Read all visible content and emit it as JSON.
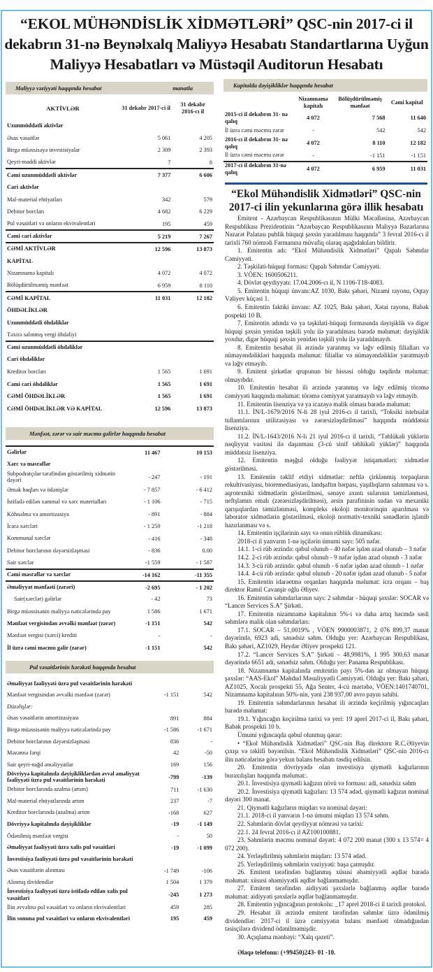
{
  "title": "“EKOL  MÜHƏNDİSLİK  XİDMƏTLƏRİ” QSC-nin 2017-ci il dekabrın 31-nə Beynəlxalq Maliyyə Hesabatı Standartlarına Uyğun Maliyyə Hesabatları və Müstəqil Auditorun Hesabatı",
  "colors": {
    "frame": "#6ec1e4",
    "bar": "#d8d5c6",
    "rule": "#1f4e8c"
  },
  "balance": {
    "heading": "Maliyyə vəziyyəti haqqında hesabat",
    "unit": "manatla",
    "col0": "AKTİVLƏR",
    "col1": "31 dekabr 2017-ci il",
    "col2": "31 dekabr 2016-cı il",
    "rows": [
      {
        "label": "Uzunmüddətli aktivlər",
        "v1": "",
        "v2": "",
        "style": "b"
      },
      {
        "label": "Əsas vəsaitlər",
        "v1": "5 061",
        "v2": "4 205"
      },
      {
        "label": "Birgə müəssisəyə investisiyalar",
        "v1": "2 309",
        "v2": "2 393"
      },
      {
        "label": "Qeyri-maddi aktivlər",
        "v1": "7",
        "v2": "8"
      },
      {
        "label": "Cəmi uzunmüddətli aktivlər",
        "v1": "7 377",
        "v2": "6 606",
        "style": "b",
        "line": true
      },
      {
        "label": "Cari aktivlər",
        "v1": "",
        "v2": "",
        "style": "b"
      },
      {
        "label": "Mal-material ehtiyatları",
        "v1": "342",
        "v2": "579"
      },
      {
        "label": "Debitor borcları",
        "v1": "4 682",
        "v2": "6 229"
      },
      {
        "label": "Pul vəsaitləri və onların ekvivalentləri",
        "v1": "195",
        "v2": "459"
      },
      {
        "label": "Cəmi cari aktivlər",
        "v1": "5 219",
        "v2": "7 267",
        "style": "b",
        "line": true
      },
      {
        "label": "CƏMİ AKTİVLƏR",
        "v1": "12 596",
        "v2": "13 873",
        "style": "b",
        "line": true
      },
      {
        "label": "KAPİTAL",
        "v1": "",
        "v2": "",
        "style": "b"
      },
      {
        "label": "Nizamnamə kapitalı",
        "v1": "4 072",
        "v2": "4 072"
      },
      {
        "label": "Bölüşdürülməmiş mənfəət",
        "v1": "6 959",
        "v2": "8 110"
      },
      {
        "label": "CƏMİ KAPİTAL",
        "v1": "11 031",
        "v2": "12 182",
        "style": "b",
        "line": true
      },
      {
        "label": "ÖHDƏLİKLƏR",
        "v1": "",
        "v2": "",
        "style": "b"
      },
      {
        "label": "Uzunmüddətli öhdəliklər",
        "v1": "",
        "v2": "",
        "style": "b"
      },
      {
        "label": "Təxirə salınmış vergi öhdəliyi",
        "v1": "",
        "v2": ""
      },
      {
        "label": "Cəmi uzunmüddətli öhdəliklər",
        "v1": "",
        "v2": "",
        "style": "b",
        "line": true
      },
      {
        "label": "Cari öhdəliklər",
        "v1": "",
        "v2": "",
        "style": "b"
      },
      {
        "label": "Kreditor borcları",
        "v1": "1 565",
        "v2": "1 691"
      },
      {
        "label": "Cəmi cari öhdəliklər",
        "v1": "1 565",
        "v2": "1 691",
        "style": "b"
      },
      {
        "label": "CƏMİ ÖHDƏLİKLƏR",
        "v1": "1 565",
        "v2": "1 691",
        "style": "b"
      },
      {
        "label": "CƏMİ ÖHDƏLİKLƏR VƏ KAPİTAL",
        "v1": "12 596",
        "v2": "13 873",
        "style": "b"
      }
    ]
  },
  "income": {
    "heading": "Mənfəət, zərər və sair məcmu gəlirlər haqqında hesabat",
    "rows": [
      {
        "label": "Gəlirlər",
        "v1": "11 467",
        "v2": "10 153",
        "style": "b",
        "line": true
      },
      {
        "label": "Xərc və məsrəflər",
        "v1": "",
        "v2": "",
        "style": "b"
      },
      {
        "label": "Subpodratçılar tərəfindən göstərilmiş xidmətin dəyəri",
        "v1": "- 247",
        "v2": "- 191"
      },
      {
        "label": "Əmək haqları və ödənişlər",
        "v1": "- 7 857",
        "v2": "- 6 412"
      },
      {
        "label": "İstifadə edilən xammal və xərc materialları",
        "v1": "- 1 106",
        "v2": "- 715"
      },
      {
        "label": "Köhnəlmə və amortizasiya",
        "v1": "- 891",
        "v2": "- 884"
      },
      {
        "label": "İcarə xərcləri",
        "v1": "- 1 250",
        "v2": "-1 218"
      },
      {
        "label": "Kommunal xərclər",
        "v1": "- 416",
        "v2": "- 348"
      },
      {
        "label": "Debitor borclarının dəyərsizləşməsi",
        "v1": "- 836",
        "v2": "0.00"
      },
      {
        "label": "Sair xərclər",
        "v1": "-1 559",
        "v2": "- 1 587"
      },
      {
        "label": "Cəmi məsrəflər və xərclər",
        "v1": "-14 162",
        "v2": "-11 355",
        "style": "b",
        "line": true
      },
      {
        "label": "Əməliyyat mənfəəti (zərəri)",
        "v1": "-2 695",
        "v2": "-    1 202",
        "style": "b",
        "line": true
      },
      {
        "label": "Sair(xərclər) gəlirlər",
        "v1": "- 42",
        "v2": "73",
        "indent": true
      },
      {
        "label": "Birgə müəssisənin maliyyə nəticələrində pay",
        "v1": "1 586",
        "v2": "1 671"
      },
      {
        "label": "Mənfəət vergisindən əvvəlki mənfəət (zərər)",
        "v1": "-1 151",
        "v2": "542",
        "style": "b"
      },
      {
        "label": "Mənfəət vergisi (xərci) krediti",
        "v1": "-",
        "v2": "-"
      },
      {
        "label": "İl üzrə cəmi məcmu gəlir (zərər)",
        "v1": "-1 151",
        "v2": "542",
        "style": "b"
      }
    ]
  },
  "cash": {
    "heading": "Pul vəsaitlərinin hərəkəti haqqında hesabat",
    "rows": [
      {
        "label": "Əməliyyat fəaliyyəti üzrə pul vəsaitlərinin hərəkəti",
        "v1": "",
        "v2": "",
        "style": "b"
      },
      {
        "label": "Mənfəət vergisindən əvvəlki mənfəət (zərər)",
        "v1": "-1 151",
        "v2": "542"
      },
      {
        "label": "Düzəlişlər:",
        "v1": "",
        "v2": "",
        "style": "i"
      },
      {
        "label": "Əsas vəsaitlərin amortizasiyası",
        "v1": "891",
        "v2": "884"
      },
      {
        "label": "Birgə müəssisənin maliyyə nəticələrində pay",
        "v1": "-1 586",
        "v2": "-1 671"
      },
      {
        "label": "Debitor borclarının dəyərsizləşməsi",
        "v1": "836",
        "v2": "-"
      },
      {
        "label": "Məzənnə fərqi",
        "v1": "42",
        "v2": "-50"
      },
      {
        "label": "Sair qeyri-nağd əməliyyatlar",
        "v1": "169",
        "v2": "156"
      },
      {
        "label": "Dövriyyə kapitalında dəyişikliklərdən əvvəl əməliyyat fəaliyyəti üzrə pul vəsaitlərinin hərəkəti",
        "v1": "-799",
        "v2": "-139",
        "style": "b"
      },
      {
        "label": "Debitor borclarında azalma (artım)",
        "v1": "711",
        "v2": "-1 630"
      },
      {
        "label": "Mal-material ehtiyatlarında artım",
        "v1": "237",
        "v2": "-7"
      },
      {
        "label": "Kreditor borclarında (azalma) artım",
        "v1": "-168",
        "v2": "627"
      },
      {
        "label": "Dövriyyə kapitalında dəyişikliklər",
        "v1": "-19",
        "v2": "-1 149",
        "style": "b"
      },
      {
        "label": "Ödənilmiş mənfəət vergisi",
        "v1": "-",
        "v2": "50"
      },
      {
        "label": "Əməliyyat fəaliyyəti üzrə xalis pul vəsaitləri",
        "v1": "-19",
        "v2": "-1 099",
        "style": "b"
      },
      {
        "label": "İnvestisiya fəaliyyəti üzrə pul vəsaitlərinin hərəkəti",
        "v1": "",
        "v2": "",
        "style": "b"
      },
      {
        "label": "Əsas vəsaitlərin alınması",
        "v1": "-1 749",
        "v2": "-106"
      },
      {
        "label": "Alınmış dividendlər",
        "v1": "1 504",
        "v2": "1 379"
      },
      {
        "label": "İnvestisiya fəaliyyəti üzrə istifadə edilən xalis pul vəsaitləri",
        "v1": "-245",
        "v2": "1 273",
        "style": "b"
      },
      {
        "label": "İlin əvvəlinə pul vəsaitləri və onların ekvivalentləri",
        "v1": "459",
        "v2": "285"
      },
      {
        "label": "İlin sonuna pul vəsaitləri və onların ekvivalentləri",
        "v1": "195",
        "v2": "459",
        "style": "b"
      }
    ]
  },
  "equity": {
    "heading": "Kapitalda dəyişikliklər haqqında hesabat",
    "col1": "Nizamnamə kapitalı",
    "col2": "Bölüşdürülməmiş mənfəət",
    "col3": "Cəmi kapital",
    "rows": [
      {
        "label": "2015-ci  il  dekabrın 31- nə qalıq",
        "v1": "4 072",
        "v2": "7 568",
        "v3": "11 640",
        "style": "b"
      },
      {
        "label": "İl üzrə cəmi məcmu zərər",
        "v1": "-",
        "v2": "542",
        "v3": "542"
      },
      {
        "label": "2016-cı  il  dekabrın 31- nə qalıq",
        "v1": "4 072",
        "v2": "8 110",
        "v3": "12 182",
        "style": "b"
      },
      {
        "label": "İl üzrə cəmi məcmu zərər",
        "v1": "-",
        "v2": "-1 151",
        "v3": "-1 151"
      },
      {
        "label": "2017-ci  il dekabrın 31-nə qalıq",
        "v1": "4 072",
        "v2": "6 959",
        "v3": "11 031",
        "style": "b",
        "line": true
      }
    ]
  },
  "report": {
    "title": "“Ekol Mühəndislik Xidmətləri” QSC-nin 2017-ci ilin yekunlarına görə illik hesabatı",
    "paragraphs": [
      "Emitent - Azərbaycan Respublikasının Mülki Məcəlləsinə, Azərbaycan Respublikası Prezidentinin “Azərbaycan Respublikasının Maliyyə Bazarlarına Nəzarət Palatası publik hüquqi şəxsin yaradılması haqqında” 3 fevral 2016-cı il tarixli 760 nömrəli Fərmanına müvafiq olaraq aşağıdakıları bildirir.",
      "1. Emitentin adı: “Ekol Mühəndislik Xidmətləri” Qapalı Səhmdar Cəmiyyəti.",
      "2. Təşkilati-hüquqi forması: Qapalı Səhmdar Cəmiyyəti.",
      "3. VÖEN: 1600506211.",
      "4. Dövlət qeydiyyatı: 17.04.2006-cı il, N 1106-T18-4083.",
      "5. Emitentin hüquqi ünvanı:AZ 1030, Bakı şəhəri, Nizami rayonu, Oqtay Vəliyev küçəsi 1.",
      "6. Emitentin faktiki ünvanı: AZ 1025, Bakı şəhəri, Xətai rayonu, Babək pospekti 10 B.",
      "7. Emitentin adında və ya təşkilati-hüquqi formasında dəyişiklik və digər hüquqi şəxsin yenidən təşkili yolu ilə yaradılması barədə məlumat: dəyişiklik yoxdur, digər hüquqi şəxsin yenidən təşkili yolu ilə yaradılmayıb.",
      "8. Emitentin hesabat ili ərzində yaranmış və ləğv edilmiş filialları və nümayəndəlikləri haqqında məlumat: filiallar və nümayəndəliklər yaratmayıb və ləğv etməyib.",
      "9. Emitent şirkətlər qrupunun bir hissəsi olduğu təqdirdə məlumat: olmayıbdır.",
      "10. Emitentin hesabat ili ərzində yaranmış və ləğv edilmiş törəmə cəmiyyəti haqqında məlumat: törəmə cəmiyyət yaratmayıb və ləğv etməyib.",
      "11. Emitentin lisenziya və ya icazəyə malik olması barədə məlumat:",
      "11.1. İN/L-1679/2016 N-li 28 iyul 2016-cı il tarixli, “Toksiki istehsalat tullantılarının utilizasiyası və zərərsizləşdirilməsi” haqqında müddətsiz lisenziya.",
      "11.2. İN/L-1643/2016 N-li 21 iyul 2016-cı il tarixli, “Təhlükəli yüklərin nəqliyyat vasitəsi ilə daşınması (3-cü sinif təhlükəli yüklər)” haqqında müddətsiz lisenziya.",
      "12. Emitentin məşğul olduğu fəaliyyət istiqamətləri: xidmətlər göstərilməsi.",
      "13. Emitentin təklif etdiyi xidmətlər: neftlə çirklənmiş torpaqların rekultivasiyası, bioremediasiyası, landşaftın bərpası, yaşıllıqların salınması və s. aqrotexniki xidmətlərin göstərilməsi, sənaye axıntı sularının təmizlənməsi, neftşlamın emalı (zərərsizləşdirilməsi), ərsin parafininin sudan və mexaniki qarışıqlardan təmizlənməsi, kompleks ekoloji monitorinqin aparılması və laborator xidmətlərin göstərilməsi, ekoloji normativ-texniki sənədlərin işlənib hazırlanması və s.",
      "14. Emitentin işçilərinin sayı və onun rüblük dinamikası:",
      "2018-ci il yanvarın 1-nə işçilərin ümumi sayı: 505 nəfər.",
      "14.1.  1-ci rüb ərzində: qəbul olunub - 40 nəfər işdən azad olunub – 3 nəfər",
      "14.2.  2-ci rüb ərzində: qəbul olunub - 9 nəfər işdən azad olunub - 3 nəfər",
      "14.3.  3-cü rüb ərzində: qəbul olunub - 6 nəfər işdən azad olunub - 1 nəfər",
      "14.4.  4-cü rüb ərzində: qəbul olunub - 20 nəfər işdən azad olunub - 5 nəfər",
      "15. Emitentin idarəetmə orqanları haqqında məlumat: icra orqanı – baş direktor Ramil Cavanşir oğlu Əliyev.",
      "16. Emitentin səhmdarlarının sayı: 2 səhmdar - hüquqi şəxslər: SOCAR və “Lancer Services S.A” Şirkəti.",
      "17. Emitentin nizamnamə kapitalının 5%-i və daha artıq həcmdə səsli səhmlərə malik olan səhmdarları:",
      "17.1. SOCAR – 51,0019% , VÖEN 9900003871, 2 076 899,37 manat dəyərində, 6923 adi, sənədsiz səhm. Olduğu yer: Azərbaycan Respublikası, Bakı şəhəri, AZ1029, Heydər Əliyev prospekti 121.",
      "17.2. “Lancer Services S.A” Şirkəti – 48,9981%, 1 995 300,63 manat dəyərində 6651 adi, sənədsiz səhm. Olduğu yer: Panama Respublikası.",
      "18. Nizamnamə kapitalında emitentin payı 5%-dən az olmayan hüquqi şəxslər: “AAS-Ekol” Məhdud Məsuliyyətli Cəmiyyəti. Olduğu yer: Bakı şəhəri, AZ1025, Xocalı prospekti 55, Ağa Senter, 4-cü mərtəbə, VÖEN:1401740701, Nizamnamə kapitalının 50%-nin, yəni 238 937,00 avro payın sahibi.",
      "19. Emitentin səhmdarlarının hesabat ili ərzində keçirilmiş yığıncaqları barədə məlumat:",
      "19.1. Yığıncağın keçirilmə tarixi və yeri: 19 aprel 2017-ci il, Bakı şəhəri, Babək prospekti 10 b.",
      "Ümumi yığıncaqda qəbul olunmuş qərar:",
      "• “Ekol Mühəndislik Xidmətləri” QSC-nin Baş direktoru R.C.Əliyevin çıxışı və təklifi bəyənilsin. “Ekol Mühəndislik Xidmətləri” QSC-nin 2016-cı ilin nəticələrinə görə yekun balans hesabatı təsdiq edilsin.",
      "20. Emitentin dövriyyədə olan investisiya qiymətli kağızlarının buraxılışları haqqında məlumat:.",
      "20.1. İnvestisiya qiymətli kağızın növü və forması: adi, sənədsiz səhm",
      "20.2. İnvestisiya qiymətli kağızları: 13 574 ədəd, qiymətli kağızın nominal dəyəri 300 manat.",
      "21. Qiymətli kağızların miqdarı və nominal dəyəri:",
      "21.1. 2018-ci il yanvarın 1-nə ümumi miqdarı 13 574 səhm.",
      "22. Səhmlərin dövlət qeydiyyat nömrəsi və tarixi:",
      "22.1. 24 fevral 2016-cı il AZ100100881.",
      "23. Səhmlərin məcmu nominal dəyəri: 4 072 200 manat (300 x 13 574= 4 072 200).",
      "24. Yerləşdirilmiş səhmlərin miqdarı: 13 574 ədəd.",
      "25. Yerləşdirilmiş səhmlərin vəziyyəti: başa çatmışdır.",
      "26. Emitent tərəfindən bağlanmış xüsusi əhəmiyyətli əqdlər barədə məlumat: xüsusi əhəmiyyətli əqdlər bağlanmamışdır.",
      "27. Emitent tərəfindən aidiyyəti şəxslərlə bağlanmış əqdlər barədə məlumat: aidiyyəti şəxslərlə əqdlər bağlanmamışdır.",
      "28. Emitentin yığıncağının protokolu: _17 aprel 2018-ci il tarixli protokol.",
      "29. Hesabat ili ərzində emitent tərəfindən səhmlər üzrə ödənilmiş dividendlər: 2017-ci il üzrə cəmiyyətin balans mənfəəti olmadığından təsisçilərə dividend ödənilməmişdir.",
      "30. Açıqlama mənbəyi: “Xalq qəzeti”."
    ],
    "phone": "Əlaqə telefonu: (+99450)243- 01 -10."
  }
}
